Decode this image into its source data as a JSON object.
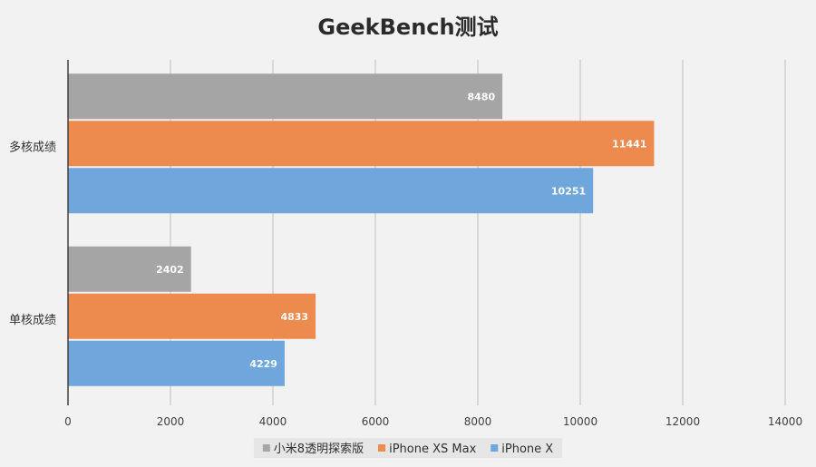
{
  "chart_data": {
    "type": "bar",
    "orientation": "horizontal",
    "title": "GeekBench测试",
    "categories": [
      "多核成绩",
      "单核成绩"
    ],
    "series": [
      {
        "name": "小米8透明探索版",
        "color": "#a5a5a5",
        "values": [
          8480,
          2402
        ]
      },
      {
        "name": "iPhone XS Max",
        "color": "#ed8b4e",
        "values": [
          11441,
          4833
        ]
      },
      {
        "name": "iPhone X",
        "color": "#6fa6dc",
        "values": [
          10251,
          4229
        ]
      }
    ],
    "xlim": [
      0,
      14000
    ],
    "xticks": [
      0,
      2000,
      4000,
      6000,
      8000,
      10000,
      12000,
      14000
    ],
    "grid": true,
    "legend": "bottom"
  }
}
